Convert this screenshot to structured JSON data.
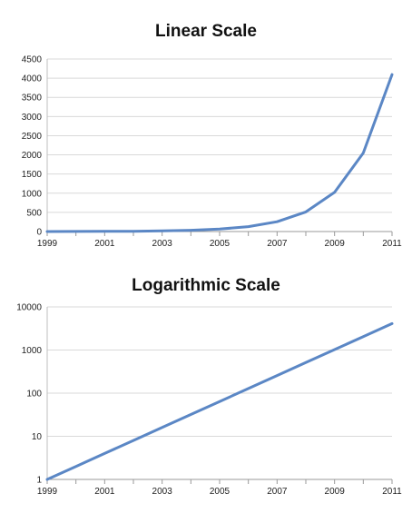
{
  "chart_data": [
    {
      "type": "line",
      "title": "Linear Scale",
      "xlabel": "",
      "ylabel": "",
      "x": [
        1999,
        2000,
        2001,
        2002,
        2003,
        2004,
        2005,
        2006,
        2007,
        2008,
        2009,
        2010,
        2011
      ],
      "series": [
        {
          "values": [
            1,
            2,
            4,
            8,
            16,
            32,
            64,
            128,
            256,
            512,
            1024,
            2048,
            4096
          ]
        }
      ],
      "xlim": [
        1999,
        2011
      ],
      "ylim": [
        0,
        4500
      ],
      "yscale": "linear",
      "x_ticks": [
        "1999",
        "2001",
        "2003",
        "2005",
        "2007",
        "2009",
        "2011"
      ],
      "y_ticks": [
        "0",
        "500",
        "1000",
        "1500",
        "2000",
        "2500",
        "3000",
        "3500",
        "4000",
        "4500"
      ],
      "grid": true,
      "line_color": "#5B87C5",
      "grid_color": "#D9D9D9"
    },
    {
      "type": "line",
      "title": "Logarithmic  Scale",
      "xlabel": "",
      "ylabel": "",
      "x": [
        1999,
        2000,
        2001,
        2002,
        2003,
        2004,
        2005,
        2006,
        2007,
        2008,
        2009,
        2010,
        2011
      ],
      "series": [
        {
          "values": [
            1,
            2,
            4,
            8,
            16,
            32,
            64,
            128,
            256,
            512,
            1024,
            2048,
            4096
          ]
        }
      ],
      "xlim": [
        1999,
        2011
      ],
      "ylim": [
        1,
        10000
      ],
      "yscale": "log",
      "x_ticks": [
        "1999",
        "2001",
        "2003",
        "2005",
        "2007",
        "2009",
        "2011"
      ],
      "y_ticks": [
        "1",
        "10",
        "100",
        "1000",
        "10000"
      ],
      "grid": true,
      "line_color": "#5B87C5",
      "grid_color": "#D9D9D9"
    }
  ]
}
